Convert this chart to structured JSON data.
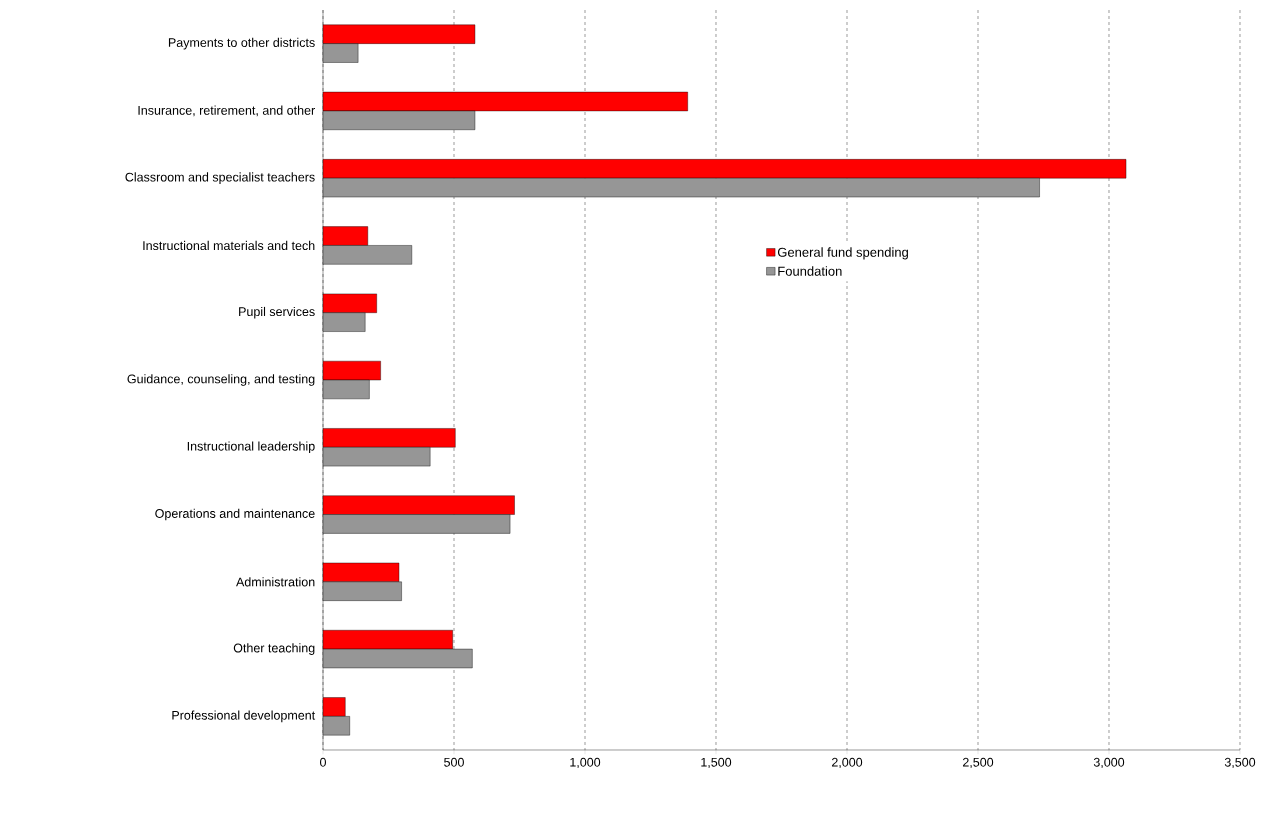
{
  "chart_data": {
    "type": "bar",
    "orientation": "horizontal",
    "categories": [
      "Payments to other districts",
      "Insurance, retirement, and other",
      "Classroom and specialist teachers",
      "Instructional materials and tech",
      "Pupil services",
      "Guidance, counseling, and testing",
      "Instructional leadership",
      "Operations and maintenance",
      "Administration",
      "Other teaching",
      "Professional development"
    ],
    "series": [
      {
        "name": "General fund spending",
        "color": "#ff0000",
        "values": [
          580,
          1392,
          3065,
          171,
          205,
          220,
          505,
          731,
          290,
          495,
          85
        ]
      },
      {
        "name": "Foundation",
        "color": "#969696",
        "values": [
          134,
          580,
          2735,
          339,
          161,
          177,
          409,
          714,
          300,
          570,
          102
        ]
      }
    ],
    "xlim": [
      0,
      3500
    ],
    "xticks": [
      0,
      {
        "value": 500,
        "label": "500"
      },
      {
        "value": 1000,
        "label": "1,000"
      },
      {
        "value": 1500,
        "label": "1,500"
      },
      {
        "value": 2000,
        "label": "2,000"
      },
      {
        "value": 2500,
        "label": "2,500"
      },
      {
        "value": 3000,
        "label": "3,000"
      },
      {
        "value": 3500,
        "label": "3,500"
      }
    ],
    "grid": "x",
    "legend": "right"
  }
}
